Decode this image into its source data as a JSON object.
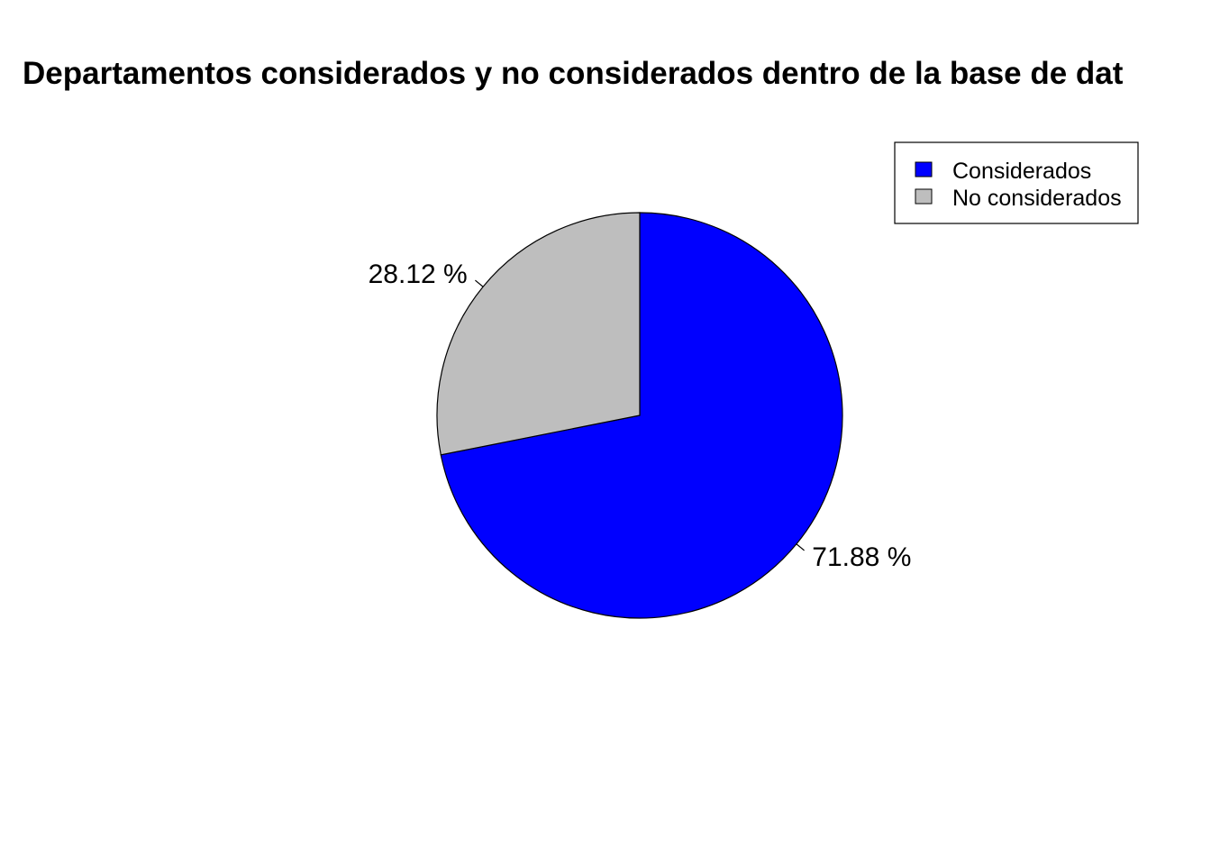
{
  "chart_data": {
    "type": "pie",
    "title": "Departamentos considerados y no considerados dentro de la base de dat",
    "slices": [
      {
        "name": "Considerados",
        "value": 71.88,
        "label": "71.88 %",
        "color": "#0000FF"
      },
      {
        "name": "No considerados",
        "value": 28.12,
        "label": "28.12 %",
        "color": "#BEBEBE"
      }
    ],
    "start_angle_deg": 90,
    "direction": "clockwise",
    "legend": {
      "position": "top-right",
      "entries": [
        "Considerados",
        "No considerados"
      ]
    }
  }
}
